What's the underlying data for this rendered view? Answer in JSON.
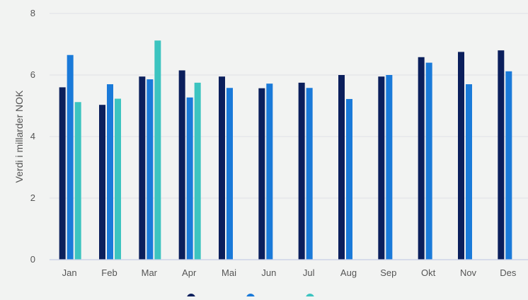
{
  "chart_data": {
    "type": "bar",
    "title": "",
    "xlabel": "",
    "ylabel": "Verdi i millarder NOK",
    "ylim": [
      0,
      8
    ],
    "yticks": [
      0,
      2,
      4,
      6,
      8
    ],
    "grid": true,
    "legend_position": "bottom",
    "categories": [
      "Jan",
      "Feb",
      "Mar",
      "Apr",
      "Mai",
      "Jun",
      "Jul",
      "Aug",
      "Sep",
      "Okt",
      "Nov",
      "Des"
    ],
    "series": [
      {
        "color": "#0b1f5c",
        "values": [
          5.6,
          5.03,
          5.95,
          6.15,
          5.95,
          5.57,
          5.75,
          6.0,
          5.95,
          6.58,
          6.75,
          6.8
        ]
      },
      {
        "color": "#1a7ad9",
        "values": [
          6.65,
          5.7,
          5.86,
          5.27,
          5.58,
          5.72,
          5.58,
          5.22,
          6.0,
          6.4,
          5.7,
          6.12
        ]
      },
      {
        "color": "#3cc4c0",
        "values": [
          5.12,
          5.23,
          7.12,
          5.75,
          null,
          null,
          null,
          null,
          null,
          null,
          null,
          null
        ]
      }
    ]
  }
}
